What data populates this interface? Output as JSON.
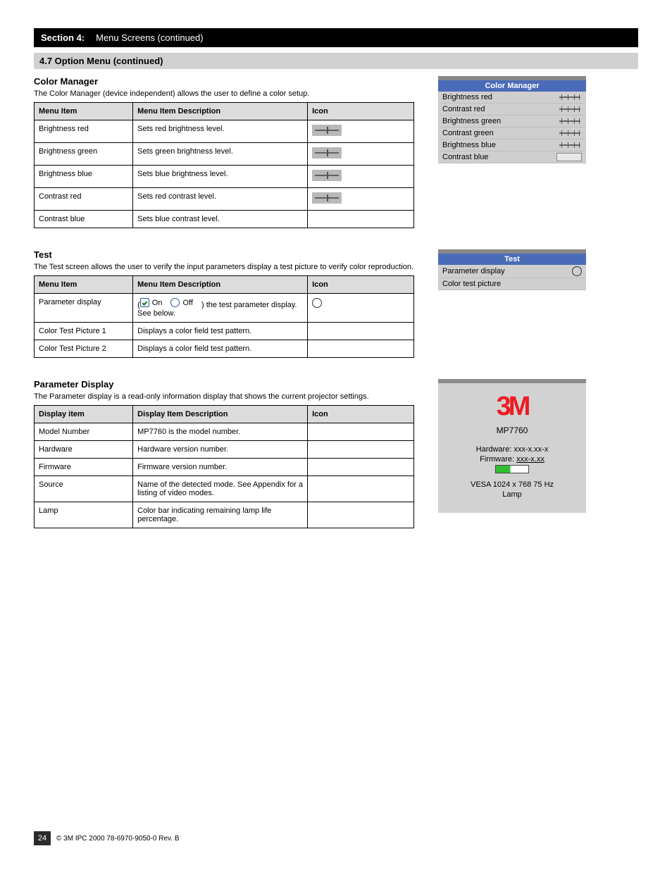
{
  "header": {
    "section_no": "Section 4:",
    "section_title": "Menu Screens (continued)",
    "subtitle": "4.7 Option Menu (continued)"
  },
  "color_manager": {
    "title": "Color Manager",
    "desc": "The Color Manager (device independent) allows the user to define a color setup.",
    "table": {
      "headers": [
        "Menu Item",
        "Menu Item Description",
        "Icon"
      ],
      "rows": [
        {
          "item": "Brightness red",
          "desc": "Sets red brightness level.",
          "icon": "slider"
        },
        {
          "item": "Brightness green",
          "desc": "Sets green brightness level.",
          "icon": "slider"
        },
        {
          "item": "Brightness blue",
          "desc": "Sets blue brightness level.",
          "icon": "slider"
        },
        {
          "item": "Contrast red",
          "desc": "Sets red contrast level.",
          "icon": "slider"
        },
        {
          "item": "Contrast blue",
          "desc": "Sets blue contrast level.",
          "icon": ""
        }
      ]
    },
    "panel": {
      "title": "Color Manager",
      "rows": [
        {
          "label": "Brightness red",
          "ctrl": "slider"
        },
        {
          "label": "Contrast red",
          "ctrl": "slider"
        },
        {
          "label": "Brightness green",
          "ctrl": "slider"
        },
        {
          "label": "Contrast green",
          "ctrl": "slider"
        },
        {
          "label": "Brightness blue",
          "ctrl": "slider"
        },
        {
          "label": "Contrast blue",
          "ctrl": "empty"
        }
      ]
    }
  },
  "test": {
    "title": "Test",
    "desc": "The Test screen allows the user to verify the input parameters display a test picture to verify color reproduction.",
    "table": {
      "headers": [
        "Menu Item",
        "Menu Item Description",
        "Icon"
      ],
      "rows": [
        {
          "item": "Parameter display",
          "desc_pre": "(",
          "on": "On",
          "off": "Off",
          "desc_post": ") the test parameter display. See below.",
          "icon": "radio"
        },
        {
          "item": "Color Test Picture 1",
          "desc": "Displays a color field test pattern.",
          "icon": ""
        },
        {
          "item": "Color Test Picture 2",
          "desc": "Displays a color field test pattern.",
          "icon": ""
        }
      ]
    },
    "panel": {
      "title": "Test",
      "rows": [
        {
          "label": "Parameter display",
          "ctrl": "radio"
        },
        {
          "label": "Color test picture",
          "ctrl": ""
        }
      ]
    }
  },
  "param": {
    "title": "Parameter Display",
    "desc": "The Parameter display is a read-only information display that shows the current projector settings.",
    "table": {
      "headers": [
        "Display item",
        "Display Item Description",
        "Icon"
      ],
      "rows": [
        {
          "item": "Model Number",
          "desc": "MP7760 is the model number.",
          "icon": ""
        },
        {
          "item": "Hardware",
          "desc": "Hardware version number.",
          "icon": ""
        },
        {
          "item": "Firmware",
          "desc": "Firmware version number.",
          "icon": ""
        },
        {
          "item": "Source",
          "desc": "Name of the detected mode. See Appendix for a listing of video modes.",
          "icon": ""
        },
        {
          "item": "Lamp",
          "desc": "Color bar indicating remaining lamp life percentage.",
          "icon": ""
        }
      ]
    },
    "info": {
      "brand": "3M",
      "model": "MP7760",
      "hardware_label": "Hardware:",
      "hardware_val": "xxx-x.xx-x",
      "firmware_label": "Firmware:",
      "firmware_val": "xxx-x.xx",
      "mode": "VESA 1024 x 768  75 Hz",
      "lamp_label": "Lamp"
    }
  },
  "footer": {
    "page": "24",
    "text": "© 3M IPC 2000   78-6970-9050-0  Rev. B"
  }
}
